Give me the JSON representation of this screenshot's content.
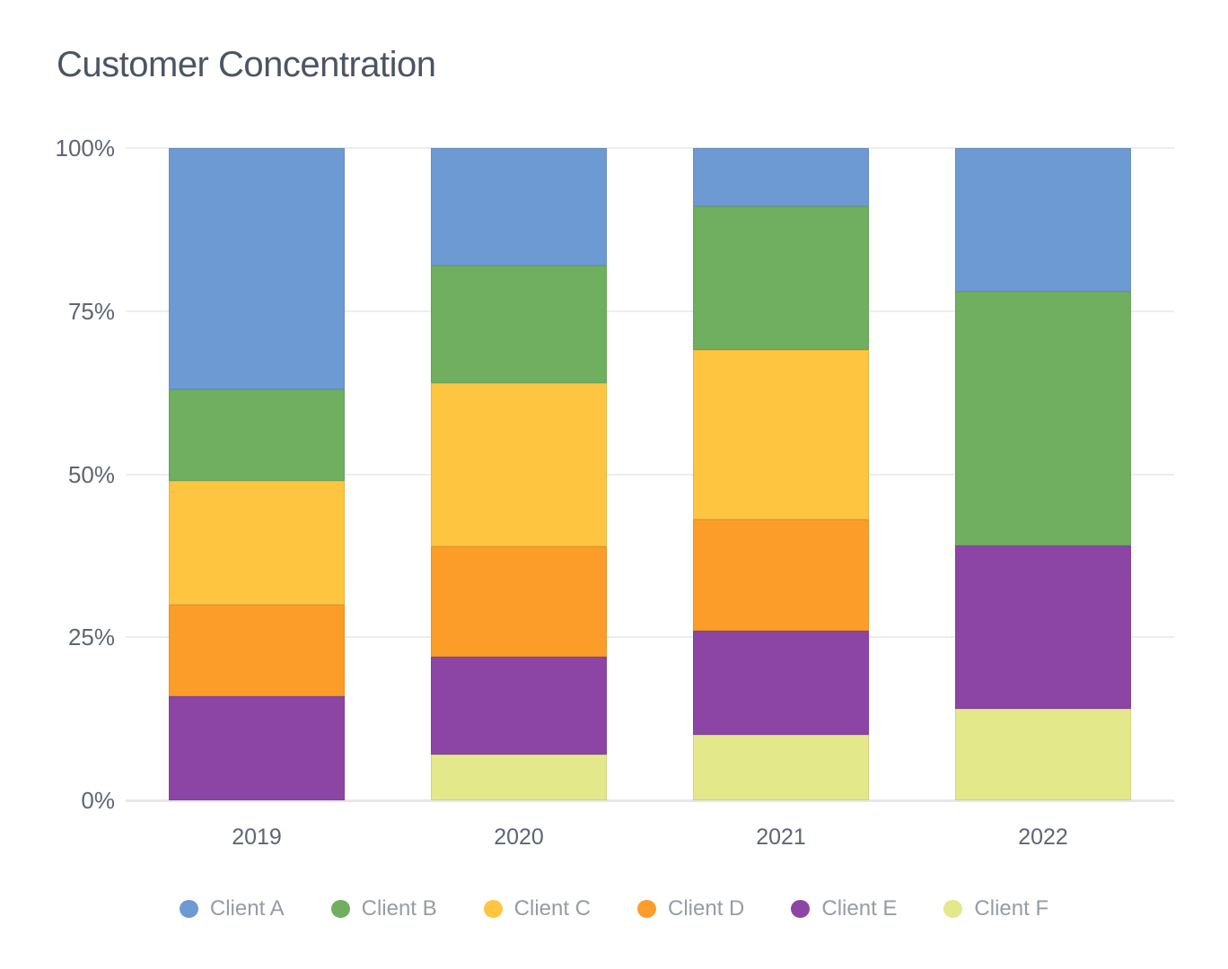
{
  "title": "Customer Concentration",
  "colors": {
    "background": "#ffffff",
    "title_text": "#4c5464",
    "axis_text": "#5e6673",
    "legend_text": "#969ca6",
    "gridline": "#ededef",
    "baseline": "#e7e7ea"
  },
  "chart_data": {
    "type": "bar",
    "stacked": true,
    "orientation": "vertical",
    "title": "Customer Concentration",
    "categories": [
      "2019",
      "2020",
      "2021",
      "2022"
    ],
    "series": [
      {
        "name": "Client A",
        "color": "#6d9ad2",
        "values": [
          37,
          18,
          9,
          22
        ]
      },
      {
        "name": "Client B",
        "color": "#70ae60",
        "values": [
          14,
          18,
          22,
          39
        ]
      },
      {
        "name": "Client C",
        "color": "#fdc540",
        "values": [
          19,
          25,
          26,
          0
        ]
      },
      {
        "name": "Client D",
        "color": "#fb9d28",
        "values": [
          14,
          17,
          17,
          0
        ]
      },
      {
        "name": "Client E",
        "color": "#8c45a5",
        "values": [
          16,
          15,
          16,
          25
        ]
      },
      {
        "name": "Client F",
        "color": "#e3e88a",
        "values": [
          0,
          7,
          10,
          14
        ]
      }
    ],
    "y_axis": {
      "unit": "%",
      "min": 0,
      "max": 100,
      "tick_values": [
        0,
        25,
        50,
        75,
        100
      ],
      "tick_labels": [
        "0%",
        "25%",
        "50%",
        "75%",
        "100%"
      ]
    },
    "grid": true,
    "legend_position": "bottom"
  }
}
